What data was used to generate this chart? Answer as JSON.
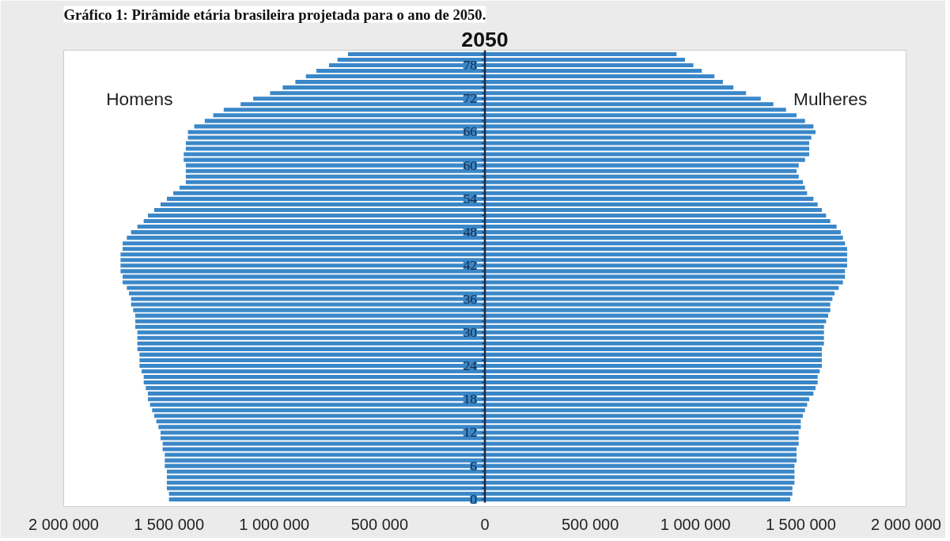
{
  "chart_data": {
    "type": "bar",
    "orientation": "horizontal",
    "title": "2050",
    "annotations": [
      "Gráfico 1: Pirâmide etária brasileira projetada para o ano de 2050."
    ],
    "categories": [
      null,
      null,
      "78",
      null,
      null,
      null,
      null,
      null,
      "72",
      null,
      null,
      null,
      null,
      null,
      "66",
      null,
      null,
      null,
      null,
      null,
      "60",
      null,
      null,
      null,
      null,
      null,
      "54",
      null,
      null,
      null,
      null,
      null,
      "48",
      null,
      null,
      null,
      null,
      null,
      "42",
      null,
      null,
      null,
      null,
      null,
      "36",
      null,
      null,
      null,
      null,
      null,
      "30",
      null,
      null,
      null,
      null,
      null,
      "24",
      null,
      null,
      null,
      null,
      null,
      "18",
      null,
      null,
      null,
      null,
      null,
      "12",
      null,
      null,
      null,
      null,
      null,
      "6",
      null,
      null,
      null,
      null,
      null,
      "0"
    ],
    "series": [
      {
        "name": "Homens",
        "color": "#3a87c8",
        "values": [
          -650000,
          -700000,
          -740000,
          -800000,
          -850000,
          -900000,
          -960000,
          -1020000,
          -1100000,
          -1160000,
          -1240000,
          -1290000,
          -1330000,
          -1380000,
          -1410000,
          -1410000,
          -1420000,
          -1420000,
          -1430000,
          -1430000,
          -1420000,
          -1420000,
          -1420000,
          -1420000,
          -1450000,
          -1480000,
          -1510000,
          -1540000,
          -1570000,
          -1600000,
          -1620000,
          -1650000,
          -1680000,
          -1700000,
          -1720000,
          -1720000,
          -1730000,
          -1730000,
          -1730000,
          -1730000,
          -1720000,
          -1720000,
          -1700000,
          -1690000,
          -1680000,
          -1680000,
          -1670000,
          -1660000,
          -1660000,
          -1660000,
          -1650000,
          -1650000,
          -1650000,
          -1650000,
          -1640000,
          -1640000,
          -1640000,
          -1630000,
          -1620000,
          -1620000,
          -1610000,
          -1600000,
          -1600000,
          -1590000,
          -1580000,
          -1570000,
          -1560000,
          -1550000,
          -1540000,
          -1540000,
          -1530000,
          -1530000,
          -1520000,
          -1520000,
          -1520000,
          -1510000,
          -1510000,
          -1510000,
          -1510000,
          -1500000,
          -1500000
        ]
      },
      {
        "name": "Mulheres",
        "color": "#3a87c8",
        "values": [
          910000,
          950000,
          990000,
          1030000,
          1090000,
          1130000,
          1180000,
          1240000,
          1310000,
          1370000,
          1430000,
          1480000,
          1520000,
          1560000,
          1570000,
          1550000,
          1540000,
          1540000,
          1540000,
          1520000,
          1490000,
          1480000,
          1490000,
          1510000,
          1520000,
          1530000,
          1560000,
          1580000,
          1600000,
          1620000,
          1640000,
          1670000,
          1690000,
          1700000,
          1710000,
          1720000,
          1720000,
          1720000,
          1720000,
          1710000,
          1710000,
          1700000,
          1680000,
          1660000,
          1650000,
          1640000,
          1640000,
          1630000,
          1620000,
          1610000,
          1610000,
          1610000,
          1610000,
          1600000,
          1600000,
          1600000,
          1600000,
          1590000,
          1580000,
          1580000,
          1570000,
          1560000,
          1540000,
          1530000,
          1520000,
          1510000,
          1500000,
          1500000,
          1490000,
          1490000,
          1490000,
          1480000,
          1480000,
          1480000,
          1470000,
          1470000,
          1470000,
          1470000,
          1460000,
          1460000,
          1450000
        ]
      }
    ],
    "xlim": [
      -2000000,
      2000000
    ],
    "xticks": [
      {
        "value": -2000000,
        "label": "2 000 000"
      },
      {
        "value": -1500000,
        "label": "1 500 000"
      },
      {
        "value": -1000000,
        "label": "1 000 000"
      },
      {
        "value": -500000,
        "label": "500 000"
      },
      {
        "value": 0,
        "label": "0"
      },
      {
        "value": 500000,
        "label": "500 000"
      },
      {
        "value": 1000000,
        "label": "1 000 000"
      },
      {
        "value": 1500000,
        "label": "1 500 000"
      },
      {
        "value": 2000000,
        "label": "2 000 000"
      }
    ],
    "stacked": true,
    "grid": false
  }
}
